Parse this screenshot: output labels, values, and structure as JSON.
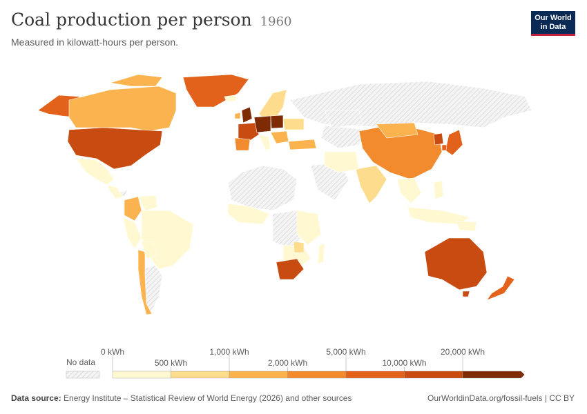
{
  "header": {
    "title": "Coal production per person",
    "year": "1960",
    "subtitle": "Measured in kilowatt-hours per person."
  },
  "logo": {
    "line1": "Our World",
    "line2": "in Data"
  },
  "legend": {
    "no_data_label": "No data",
    "top_labels": [
      "0 kWh",
      "1,000 kWh",
      "5,000 kWh",
      "20,000 kWh"
    ],
    "bottom_labels": [
      "500 kWh",
      "2,000 kWh",
      "10,000 kWh"
    ],
    "colors": [
      "#fff8d1",
      "#fedc8e",
      "#fbb350",
      "#f28a2e",
      "#e2621c",
      "#c84b12",
      "#7e2a05"
    ],
    "no_data_color": "#e6e6e6"
  },
  "footer": {
    "source_label": "Data source:",
    "source_text": "Energy Institute – Statistical Review of World Energy (2026) and other sources",
    "url_text": "OurWorldinData.org/fossil-fuels | CC BY"
  },
  "map_regions": [
    {
      "name": "Canada",
      "bin": 2
    },
    {
      "name": "United States",
      "bin": 5
    },
    {
      "name": "Greenland",
      "bin": 4
    },
    {
      "name": "Mexico",
      "bin": 0
    },
    {
      "name": "Colombia",
      "bin": 2
    },
    {
      "name": "Brazil",
      "bin": 0
    },
    {
      "name": "Chile",
      "bin": 2
    },
    {
      "name": "United Kingdom",
      "bin": 6
    },
    {
      "name": "Germany",
      "bin": 6
    },
    {
      "name": "Poland",
      "bin": 6
    },
    {
      "name": "France",
      "bin": 5
    },
    {
      "name": "Spain",
      "bin": 3
    },
    {
      "name": "Scandinavia",
      "bin": 1
    },
    {
      "name": "Turkey",
      "bin": 2
    },
    {
      "name": "China",
      "bin": 3
    },
    {
      "name": "Mongolia",
      "bin": 2
    },
    {
      "name": "North Korea",
      "bin": 5
    },
    {
      "name": "Japan",
      "bin": 4
    },
    {
      "name": "India",
      "bin": 1
    },
    {
      "name": "South Africa",
      "bin": 5
    },
    {
      "name": "Zimbabwe",
      "bin": 1
    },
    {
      "name": "Australia",
      "bin": 5
    },
    {
      "name": "New Zealand",
      "bin": 4
    },
    {
      "name": "Russia",
      "bin": -1
    }
  ]
}
